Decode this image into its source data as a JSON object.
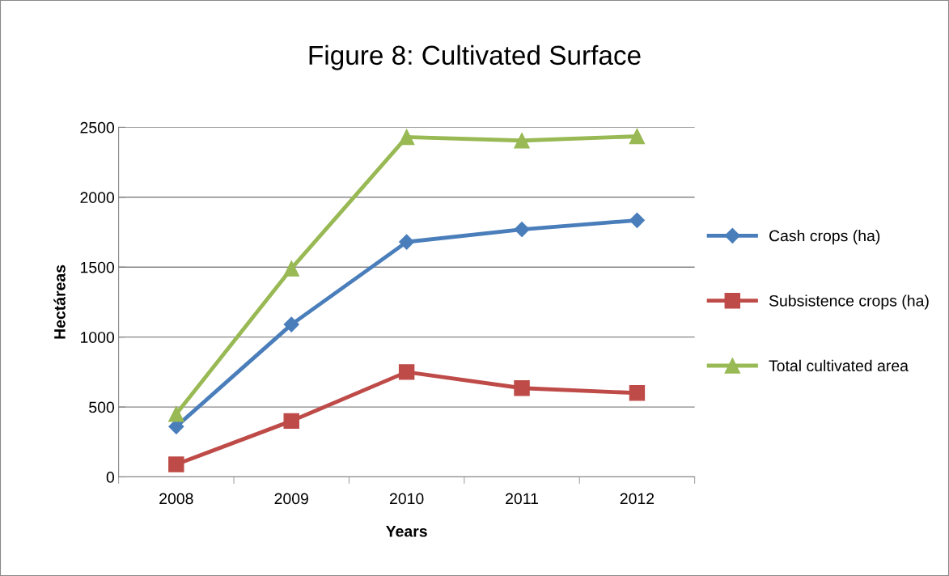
{
  "chart_data": {
    "type": "line",
    "title": "Figure 8: Cultivated Surface",
    "xlabel": "Years",
    "ylabel": "Hectáreas",
    "categories": [
      "2008",
      "2009",
      "2010",
      "2011",
      "2012"
    ],
    "series": [
      {
        "name": "Cash crops (ha)",
        "color": "#4a7ebb",
        "marker": "diamond",
        "values": [
          360,
          1090,
          1680,
          1770,
          1835
        ]
      },
      {
        "name": "Subsistence crops (ha)",
        "color": "#be4b48",
        "marker": "square",
        "values": [
          90,
          400,
          750,
          635,
          600
        ]
      },
      {
        "name": "Total cultivated area",
        "color": "#98b954",
        "marker": "triangle",
        "values": [
          450,
          1490,
          2430,
          2405,
          2435
        ]
      }
    ],
    "ylim": [
      0,
      2500
    ],
    "yticks": [
      0,
      500,
      1000,
      1500,
      2000,
      2500
    ],
    "grid": "y",
    "legend": "right",
    "line_style": "solid"
  }
}
